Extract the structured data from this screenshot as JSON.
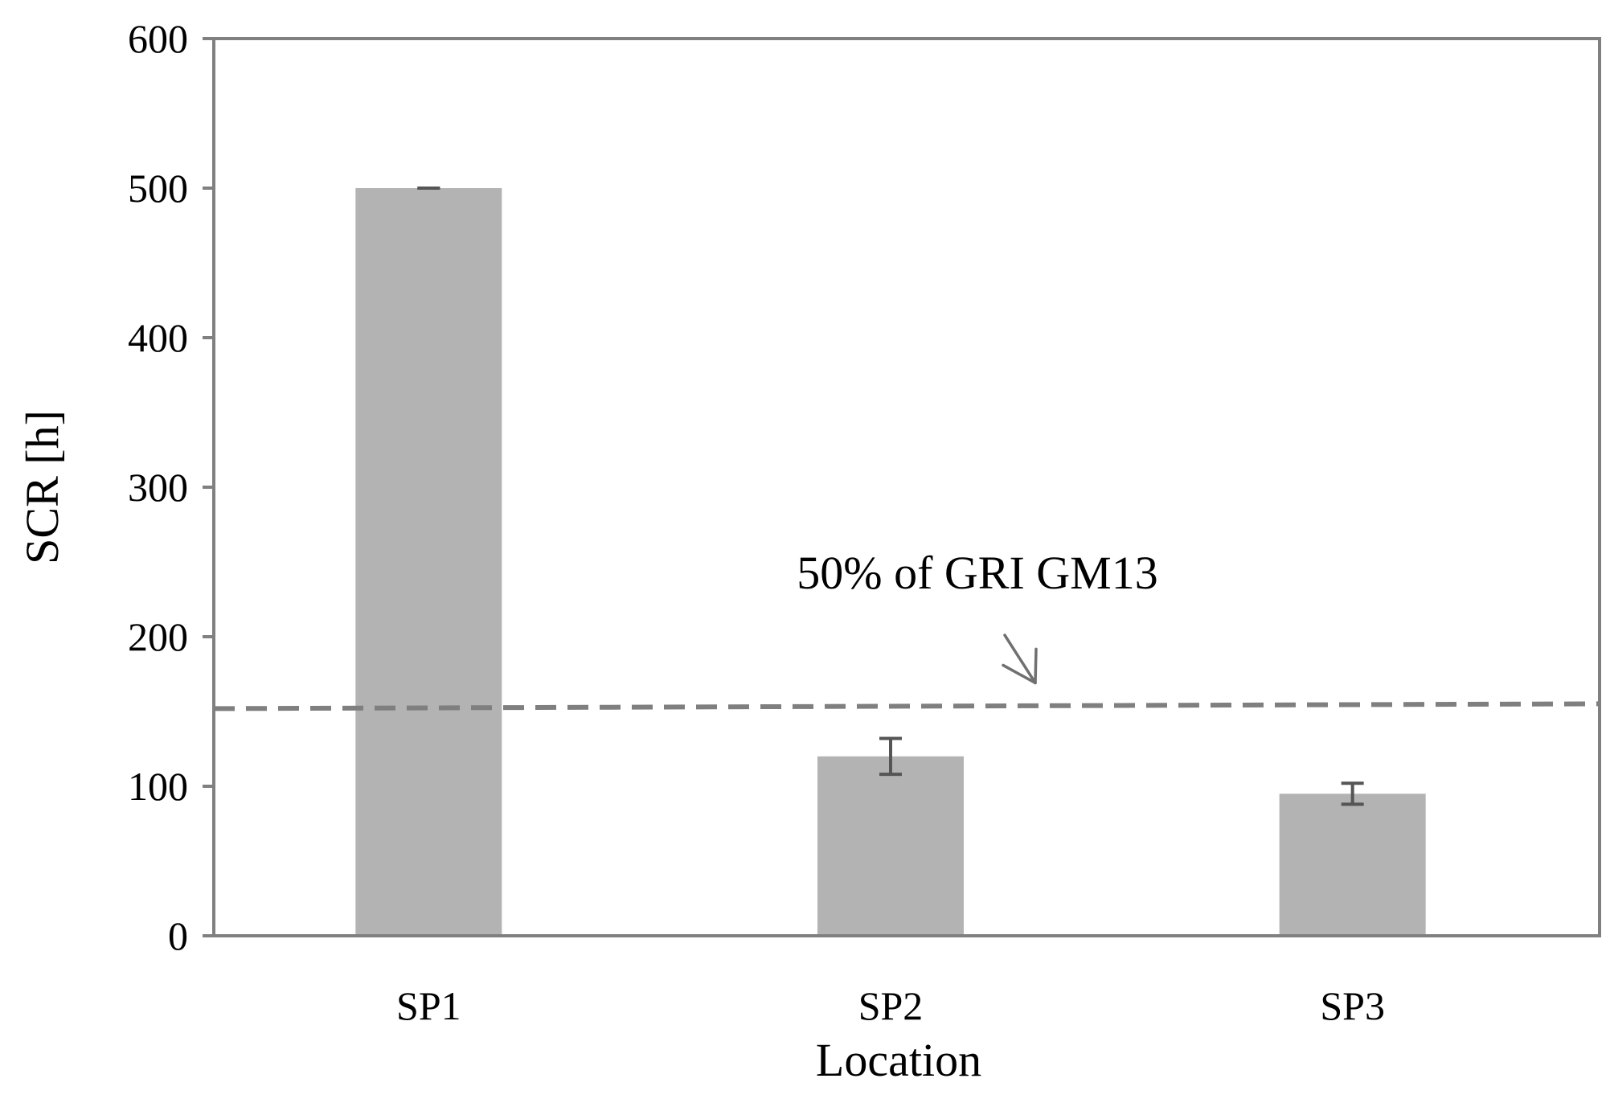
{
  "chart_data": {
    "type": "bar",
    "xlabel": "Location",
    "ylabel": "SCR [h]",
    "categories": [
      "SP1",
      "SP2",
      "SP3"
    ],
    "values": [
      500,
      120,
      95
    ],
    "error_bars": [
      0,
      12,
      7
    ],
    "ylim": [
      0,
      600
    ],
    "yticks": [
      0,
      100,
      200,
      300,
      400,
      500,
      600
    ],
    "reference_line": {
      "value": 153,
      "label": "50% of GRI GM13",
      "style": "dashed"
    },
    "grid": false,
    "legend": "none",
    "colors": {
      "bar": "#b3b3b3",
      "error_bar": "#555555",
      "axis": "#808080",
      "reference_line": "#7f7f7f"
    }
  }
}
